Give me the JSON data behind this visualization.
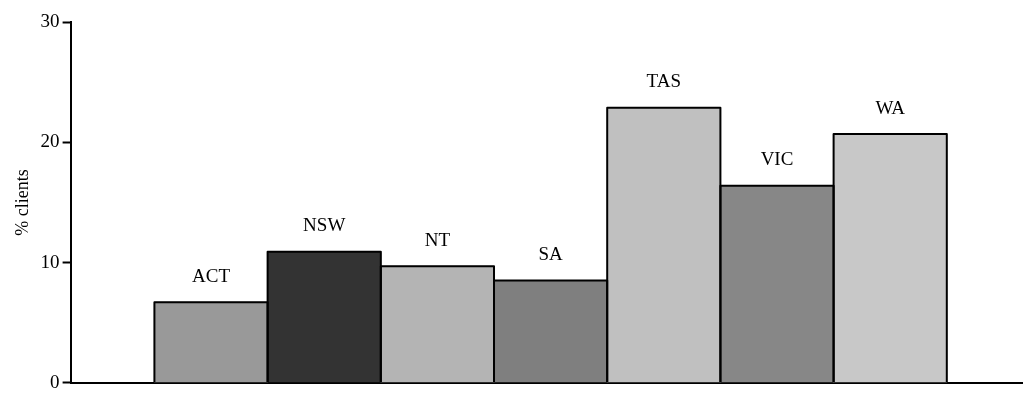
{
  "chart_data": {
    "type": "bar",
    "ylabel": "% clients",
    "categories": [
      "ACT",
      "NSW",
      "NT",
      "SA",
      "TAS",
      "VIC",
      "WA"
    ],
    "values": [
      6.7,
      10.9,
      9.7,
      8.5,
      22.9,
      16.4,
      20.7
    ],
    "colors": [
      "#999999",
      "#333333",
      "#b4b4b4",
      "#7f7f7f",
      "#c0c0c0",
      "#878787",
      "#c8c8c8"
    ],
    "ylim": [
      0,
      30
    ],
    "yticks": [
      0,
      10,
      20,
      30
    ],
    "grid": false,
    "legend": false,
    "tick_labels": "y"
  }
}
